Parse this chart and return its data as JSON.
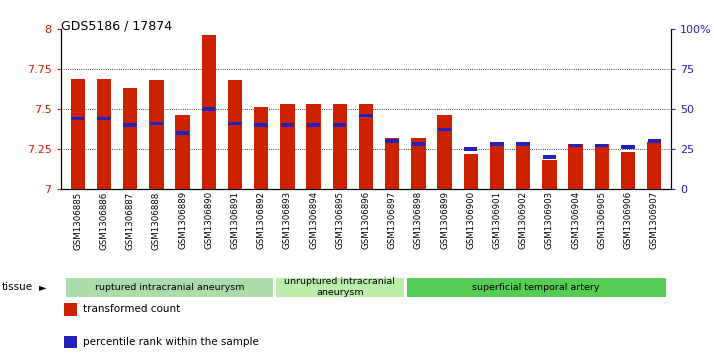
{
  "title": "GDS5186 / 17874",
  "samples": [
    "GSM1306885",
    "GSM1306886",
    "GSM1306887",
    "GSM1306888",
    "GSM1306889",
    "GSM1306890",
    "GSM1306891",
    "GSM1306892",
    "GSM1306893",
    "GSM1306894",
    "GSM1306895",
    "GSM1306896",
    "GSM1306897",
    "GSM1306898",
    "GSM1306899",
    "GSM1306900",
    "GSM1306901",
    "GSM1306902",
    "GSM1306903",
    "GSM1306904",
    "GSM1306905",
    "GSM1306906",
    "GSM1306907"
  ],
  "red_values": [
    7.69,
    7.69,
    7.63,
    7.68,
    7.46,
    7.96,
    7.68,
    7.51,
    7.53,
    7.53,
    7.53,
    7.53,
    7.32,
    7.32,
    7.46,
    7.22,
    7.28,
    7.28,
    7.18,
    7.28,
    7.28,
    7.23,
    7.29
  ],
  "blue_values": [
    44,
    44,
    40,
    41,
    35,
    50,
    41,
    40,
    40,
    40,
    40,
    46,
    30,
    28,
    37,
    25,
    28,
    28,
    20,
    27,
    27,
    26,
    30
  ],
  "groups": [
    {
      "label": "ruptured intracranial aneurysm",
      "start": 0,
      "end": 8,
      "color": "#aaddaa"
    },
    {
      "label": "unruptured intracranial\naneurysm",
      "start": 8,
      "end": 13,
      "color": "#bbeeaa"
    },
    {
      "label": "superficial temporal artery",
      "start": 13,
      "end": 23,
      "color": "#55cc55"
    }
  ],
  "ylim_left": [
    7.0,
    8.0
  ],
  "ylim_right": [
    0,
    100
  ],
  "yticks_left": [
    7.0,
    7.25,
    7.5,
    7.75,
    8.0
  ],
  "ytick_labels_left": [
    "7",
    "7.25",
    "7.5",
    "7.75",
    "8"
  ],
  "yticks_right": [
    0,
    25,
    50,
    75,
    100
  ],
  "ytick_labels_right": [
    "0",
    "25",
    "50",
    "75",
    "100%"
  ],
  "grid_values": [
    7.25,
    7.5,
    7.75
  ],
  "bar_color_red": "#cc2200",
  "bar_color_blue": "#2222bb",
  "bar_width": 0.55,
  "bg_color": "#ffffff",
  "legend_red": "transformed count",
  "legend_blue": "percentile rank within the sample",
  "tissue_label": "tissue"
}
